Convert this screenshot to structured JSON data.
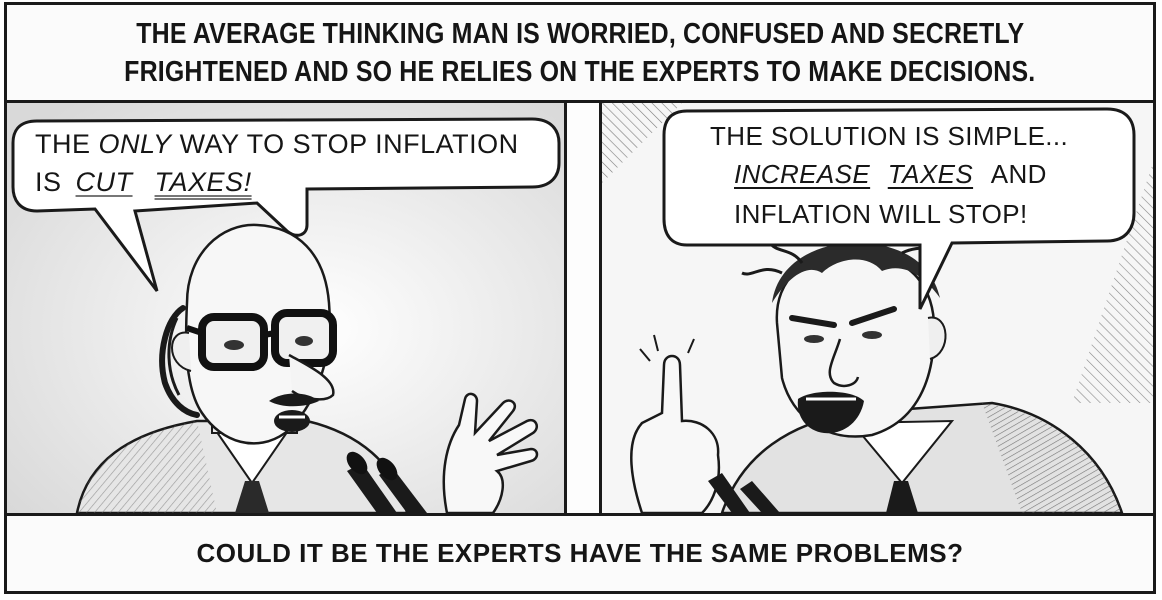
{
  "top_caption": {
    "line1": "THE AVERAGE THINKING MAN IS WORRIED, CONFUSED AND SECRETLY",
    "line2": "FRIGHTENED AND SO HE RELIES ON THE EXPERTS TO MAKE DECISIONS."
  },
  "left_panel": {
    "bubble": {
      "w1": "THE",
      "w2": "ONLY",
      "w3": "WAY TO STOP INFLATION",
      "w4": "IS",
      "w5": "CUT",
      "w6": "TAXES!"
    }
  },
  "right_panel": {
    "bubble": {
      "line1": "THE SOLUTION IS SIMPLE...",
      "w1": "INCREASE",
      "w2": "TAXES",
      "w3": "AND",
      "line3": "INFLATION WILL STOP!"
    }
  },
  "bottom_caption": {
    "text": "COULD IT BE THE EXPERTS HAVE THE SAME PROBLEMS?"
  },
  "colors": {
    "ink": "#151515",
    "paper": "#fbfbfb",
    "tone": "#cfcfcf"
  }
}
